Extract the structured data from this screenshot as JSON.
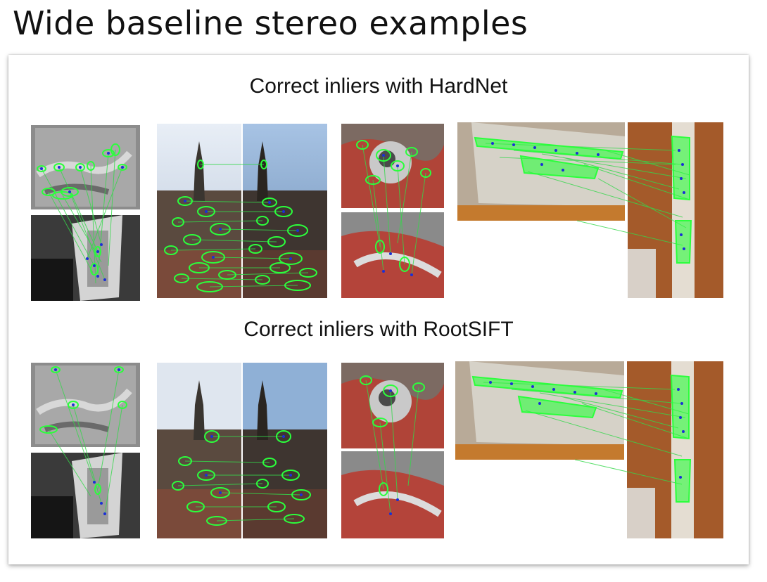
{
  "title": "Wide baseline stereo examples",
  "sections": [
    {
      "caption": "Correct inliers with HardNet"
    },
    {
      "caption": "Correct inliers with RootSIFT"
    }
  ],
  "colors": {
    "match_line": "#34d84a",
    "ellipse": "#2bff3c",
    "keypoint": "#1a2fd6"
  }
}
